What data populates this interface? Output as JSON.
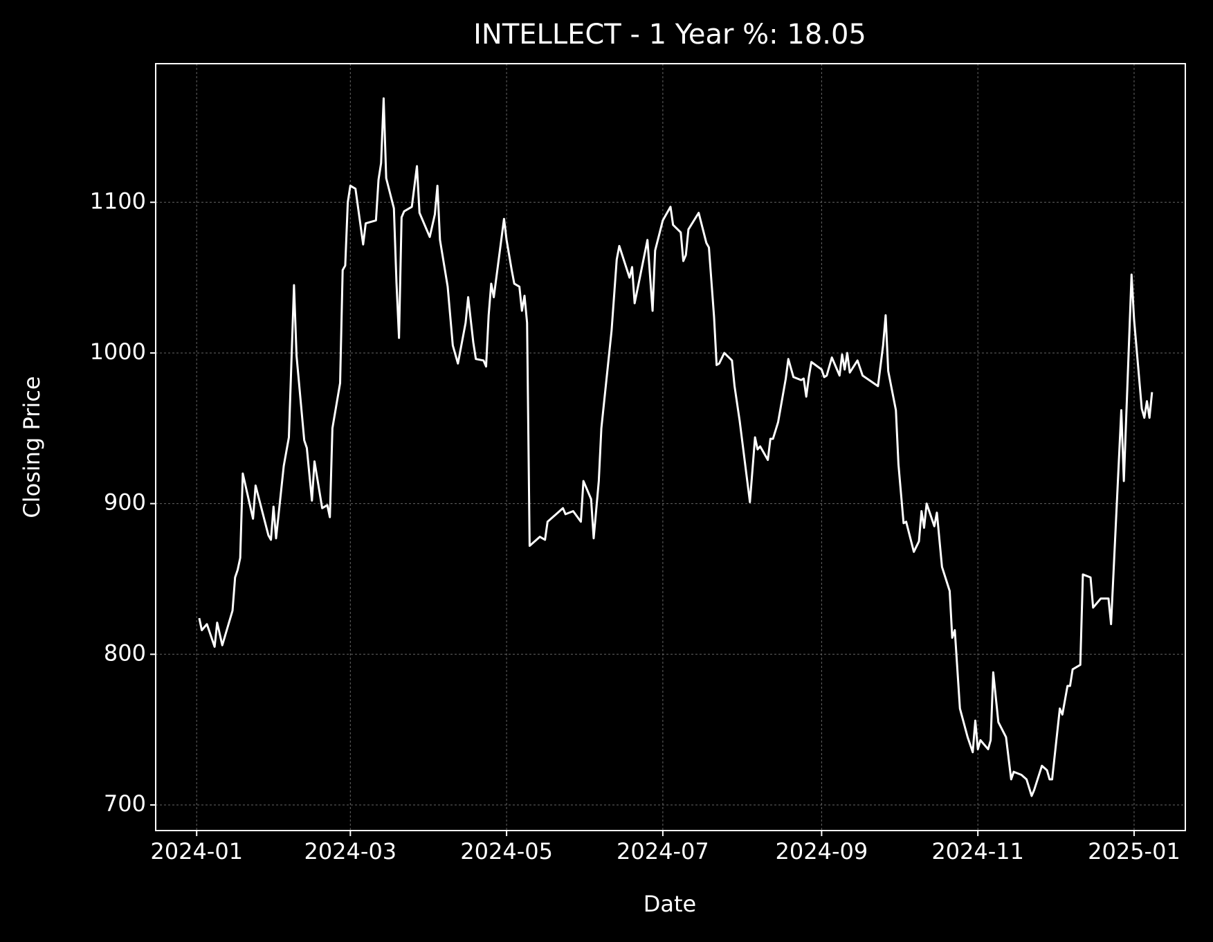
{
  "chart_data": {
    "type": "line",
    "title": "INTELLECT - 1 Year %: 18.05",
    "x_label": "Date",
    "y_label": "Closing Price",
    "color": "#ffffff",
    "grid": true,
    "xlim": [
      "2023-12-16",
      "2025-01-21"
    ],
    "ylim": [
      683,
      1192
    ],
    "xticks": [
      {
        "value": "2024-01-01",
        "label": "2024-01"
      },
      {
        "value": "2024-03-01",
        "label": "2024-03"
      },
      {
        "value": "2024-05-01",
        "label": "2024-05"
      },
      {
        "value": "2024-07-01",
        "label": "2024-07"
      },
      {
        "value": "2024-09-01",
        "label": "2024-09"
      },
      {
        "value": "2024-11-01",
        "label": "2024-11"
      },
      {
        "value": "2025-01-01",
        "label": "2025-01"
      }
    ],
    "yticks": [
      700,
      800,
      900,
      1000,
      1100
    ],
    "x": [
      "2024-01-02",
      "2024-01-03",
      "2024-01-05",
      "2024-01-08",
      "2024-01-09",
      "2024-01-11",
      "2024-01-15",
      "2024-01-16",
      "2024-01-17",
      "2024-01-18",
      "2024-01-19",
      "2024-01-23",
      "2024-01-24",
      "2024-01-29",
      "2024-01-30",
      "2024-01-31",
      "2024-02-01",
      "2024-02-04",
      "2024-02-06",
      "2024-02-08",
      "2024-02-09",
      "2024-02-12",
      "2024-02-13",
      "2024-02-15",
      "2024-02-16",
      "2024-02-19",
      "2024-02-21",
      "2024-02-22",
      "2024-02-23",
      "2024-02-26",
      "2024-02-27",
      "2024-02-28",
      "2024-02-29",
      "2024-03-01",
      "2024-03-03",
      "2024-03-06",
      "2024-03-07",
      "2024-03-11",
      "2024-03-12",
      "2024-03-13",
      "2024-03-14",
      "2024-03-15",
      "2024-03-18",
      "2024-03-19",
      "2024-03-20",
      "2024-03-21",
      "2024-03-22",
      "2024-03-25",
      "2024-03-27",
      "2024-03-28",
      "2024-04-01",
      "2024-04-03",
      "2024-04-04",
      "2024-04-05",
      "2024-04-08",
      "2024-04-10",
      "2024-04-12",
      "2024-04-15",
      "2024-04-16",
      "2024-04-18",
      "2024-04-19",
      "2024-04-22",
      "2024-04-23",
      "2024-04-24",
      "2024-04-25",
      "2024-04-26",
      "2024-04-30",
      "2024-05-01",
      "2024-05-03",
      "2024-05-04",
      "2024-05-06",
      "2024-05-07",
      "2024-05-08",
      "2024-05-09",
      "2024-05-10",
      "2024-05-14",
      "2024-05-16",
      "2024-05-17",
      "2024-05-21",
      "2024-05-23",
      "2024-05-24",
      "2024-05-27",
      "2024-05-30",
      "2024-05-31",
      "2024-06-03",
      "2024-06-04",
      "2024-06-06",
      "2024-06-07",
      "2024-06-11",
      "2024-06-13",
      "2024-06-14",
      "2024-06-18",
      "2024-06-19",
      "2024-06-20",
      "2024-06-25",
      "2024-06-27",
      "2024-06-28",
      "2024-07-01",
      "2024-07-04",
      "2024-07-05",
      "2024-07-08",
      "2024-07-09",
      "2024-07-10",
      "2024-07-11",
      "2024-07-15",
      "2024-07-18",
      "2024-07-19",
      "2024-07-21",
      "2024-07-22",
      "2024-07-23",
      "2024-07-25",
      "2024-07-28",
      "2024-07-29",
      "2024-07-31",
      "2024-08-04",
      "2024-08-06",
      "2024-08-07",
      "2024-08-08",
      "2024-08-11",
      "2024-08-12",
      "2024-08-13",
      "2024-08-15",
      "2024-08-18",
      "2024-08-19",
      "2024-08-21",
      "2024-08-24",
      "2024-08-25",
      "2024-08-26",
      "2024-08-27",
      "2024-08-28",
      "2024-09-01",
      "2024-09-02",
      "2024-09-03",
      "2024-09-05",
      "2024-09-08",
      "2024-09-09",
      "2024-09-10",
      "2024-09-11",
      "2024-09-12",
      "2024-09-15",
      "2024-09-17",
      "2024-09-23",
      "2024-09-25",
      "2024-09-26",
      "2024-09-27",
      "2024-09-30",
      "2024-10-01",
      "2024-10-03",
      "2024-10-04",
      "2024-10-07",
      "2024-10-09",
      "2024-10-10",
      "2024-10-11",
      "2024-10-12",
      "2024-10-15",
      "2024-10-16",
      "2024-10-18",
      "2024-10-21",
      "2024-10-22",
      "2024-10-23",
      "2024-10-25",
      "2024-10-28",
      "2024-10-30",
      "2024-10-31",
      "2024-11-01",
      "2024-11-02",
      "2024-11-05",
      "2024-11-06",
      "2024-11-07",
      "2024-11-09",
      "2024-11-12",
      "2024-11-14",
      "2024-11-15",
      "2024-11-18",
      "2024-11-20",
      "2024-11-22",
      "2024-11-23",
      "2024-11-26",
      "2024-11-28",
      "2024-11-29",
      "2024-11-30",
      "2024-12-03",
      "2024-12-04",
      "2024-12-06",
      "2024-12-07",
      "2024-12-08",
      "2024-12-11",
      "2024-12-12",
      "2024-12-15",
      "2024-12-16",
      "2024-12-19",
      "2024-12-22",
      "2024-12-23",
      "2024-12-27",
      "2024-12-28",
      "2024-12-31",
      "2025-01-01",
      "2025-01-04",
      "2025-01-05",
      "2025-01-06",
      "2025-01-07",
      "2025-01-08"
    ],
    "values": [
      824,
      816,
      820,
      805,
      821,
      806,
      829,
      851,
      856,
      864,
      920,
      890,
      912,
      879,
      876,
      898,
      877,
      925,
      944,
      1045,
      998,
      942,
      937,
      902,
      928,
      897,
      899,
      891,
      950,
      980,
      1055,
      1058,
      1100,
      1111,
      1109,
      1072,
      1086,
      1088,
      1115,
      1126,
      1169,
      1116,
      1096,
      1047,
      1010,
      1090,
      1094,
      1097,
      1124,
      1093,
      1077,
      1092,
      1111,
      1075,
      1044,
      1005,
      993,
      1020,
      1037,
      1007,
      996,
      995,
      991,
      1025,
      1046,
      1037,
      1089,
      1075,
      1055,
      1046,
      1044,
      1028,
      1038,
      1020,
      872,
      878,
      876,
      888,
      894,
      897,
      893,
      895,
      888,
      915,
      903,
      877,
      915,
      950,
      1015,
      1062,
      1071,
      1050,
      1057,
      1033,
      1075,
      1028,
      1068,
      1088,
      1097,
      1085,
      1080,
      1061,
      1065,
      1082,
      1093,
      1073,
      1070,
      1024,
      992,
      993,
      1000,
      995,
      978,
      955,
      901,
      944,
      936,
      938,
      929,
      943,
      943,
      954,
      983,
      996,
      984,
      982,
      983,
      971,
      984,
      994,
      989,
      984,
      985,
      997,
      985,
      999,
      989,
      1000,
      987,
      995,
      985,
      978,
      1005,
      1025,
      988,
      962,
      926,
      887,
      888,
      868,
      875,
      895,
      884,
      900,
      885,
      894,
      858,
      842,
      811,
      816,
      764,
      745,
      735,
      756,
      737,
      743,
      737,
      743,
      788,
      755,
      745,
      717,
      722,
      720,
      717,
      706,
      710,
      726,
      723,
      717,
      717,
      764,
      760,
      779,
      779,
      790,
      793,
      853,
      851,
      831,
      837,
      837,
      820,
      962,
      915,
      1052,
      1022,
      963,
      957,
      968,
      957,
      974
    ]
  }
}
